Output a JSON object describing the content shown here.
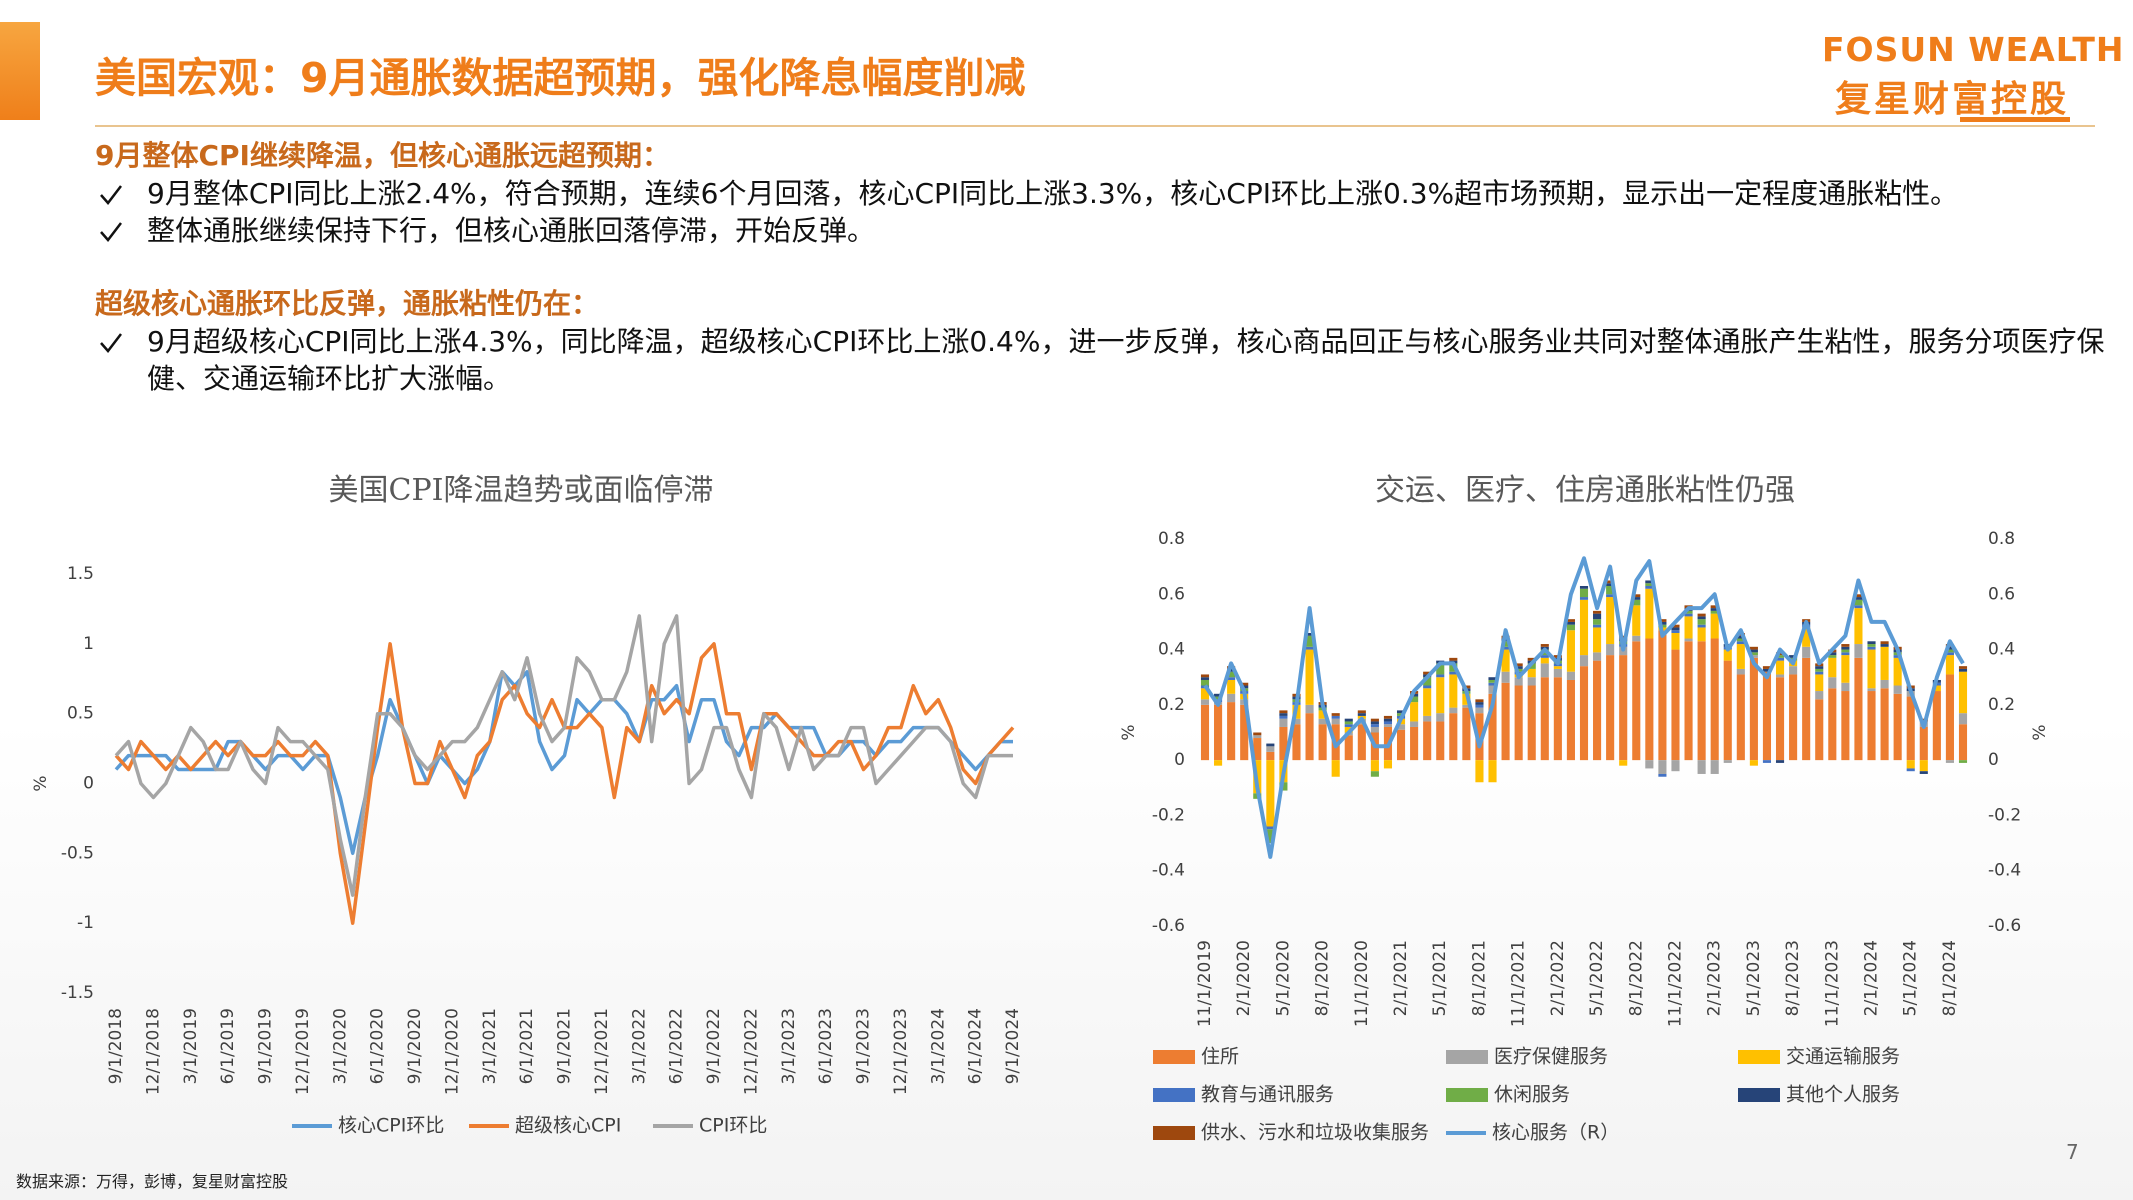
{
  "header": {
    "title": "美国宏观：9月通胀数据超预期，强化降息幅度削减",
    "logo_en": "FOSUN WEALTH",
    "logo_cn": "复星财富控股"
  },
  "sections": [
    {
      "heading": "9月整体CPI继续降温，但核心通胀远超预期：",
      "bullets": [
        "9月整体CPI同比上涨2.4%，符合预期，连续6个月回落，核心CPI同比上涨3.3%，核心CPI环比上涨0.3%超市场预期，显示出一定程度通胀粘性。",
        "整体通胀继续保持下行，但核心通胀回落停滞，开始反弹。"
      ]
    },
    {
      "heading": "超级核心通胀环比反弹，通胀粘性仍在：",
      "bullets": [
        "9月超级核心CPI同比上涨4.3%，同比降温，超级核心CPI环比上涨0.4%，进一步反弹，核心商品回正与核心服务业共同对整体通胀产生粘性，服务分项医疗保健、交通运输环比扩大涨幅。"
      ]
    }
  ],
  "chart_data": [
    {
      "type": "line",
      "title": "美国CPI降温趋势或面临停滞",
      "ylabel": "%",
      "categories": [
        "9/1/2018",
        null,
        null,
        "12/1/2018",
        null,
        null,
        "3/1/2019",
        null,
        null,
        "6/1/2019",
        null,
        null,
        "9/1/2019",
        null,
        null,
        "12/1/2019",
        null,
        null,
        "3/1/2020",
        null,
        null,
        "6/1/2020",
        null,
        null,
        "9/1/2020",
        null,
        null,
        "12/1/2020",
        null,
        null,
        "3/1/2021",
        null,
        null,
        "6/1/2021",
        null,
        null,
        "9/1/2021",
        null,
        null,
        "12/1/2021",
        null,
        null,
        "3/1/2022",
        null,
        null,
        "6/1/2022",
        null,
        null,
        "9/1/2022",
        null,
        null,
        "12/1/2022",
        null,
        null,
        "3/1/2023",
        null,
        null,
        "6/1/2023",
        null,
        null,
        "9/1/2023",
        null,
        null,
        "12/1/2023",
        null,
        null,
        "3/1/2024",
        null,
        null,
        "6/1/2024",
        null,
        null,
        "9/1/2024"
      ],
      "ylim": [
        -1.5,
        1.5
      ],
      "yticks": [
        -1.5,
        -1,
        -0.5,
        0,
        0.5,
        1,
        1.5
      ],
      "series": [
        {
          "name": "核心CPI环比",
          "color": "#5b9bd5",
          "values": [
            0.1,
            0.2,
            0.2,
            0.2,
            0.2,
            0.1,
            0.1,
            0.1,
            0.1,
            0.3,
            0.3,
            0.2,
            0.1,
            0.2,
            0.2,
            0.1,
            0.2,
            0.2,
            -0.1,
            -0.5,
            -0.1,
            0.2,
            0.6,
            0.4,
            0.2,
            0,
            0.2,
            0.1,
            0,
            0.1,
            0.3,
            0.8,
            0.7,
            0.8,
            0.3,
            0.1,
            0.2,
            0.6,
            0.5,
            0.6,
            0.6,
            0.5,
            0.3,
            0.6,
            0.6,
            0.7,
            0.3,
            0.6,
            0.6,
            0.3,
            0.2,
            0.4,
            0.4,
            0.5,
            0.4,
            0.4,
            0.4,
            0.2,
            0.2,
            0.3,
            0.3,
            0.2,
            0.3,
            0.3,
            0.4,
            0.4,
            0.4,
            0.3,
            0.2,
            0.1,
            0.2,
            0.3,
            0.3
          ]
        },
        {
          "name": "超级核心CPI",
          "color": "#ed7d31",
          "values": [
            0.2,
            0.1,
            0.3,
            0.2,
            0.1,
            0.2,
            0.1,
            0.2,
            0.3,
            0.2,
            0.3,
            0.2,
            0.2,
            0.3,
            0.2,
            0.2,
            0.3,
            0.2,
            -0.5,
            -1,
            -0.3,
            0.4,
            1,
            0.4,
            0,
            0,
            0.3,
            0.1,
            -0.1,
            0.2,
            0.3,
            0.6,
            0.7,
            0.5,
            0.4,
            0.6,
            0.4,
            0.4,
            0.5,
            0.4,
            -0.1,
            0.4,
            0.3,
            0.7,
            0.5,
            0.6,
            0.5,
            0.9,
            1,
            0.5,
            0.5,
            0.1,
            0.5,
            0.5,
            0.4,
            0.3,
            0.2,
            0.2,
            0.3,
            0.3,
            0.1,
            0.2,
            0.4,
            0.4,
            0.7,
            0.5,
            0.6,
            0.4,
            0.1,
            0,
            0.2,
            0.3,
            0.4
          ]
        },
        {
          "name": "CPI环比",
          "color": "#a5a5a5",
          "values": [
            0.2,
            0.3,
            0,
            -0.1,
            0,
            0.2,
            0.4,
            0.3,
            0.1,
            0.1,
            0.3,
            0.1,
            0,
            0.4,
            0.3,
            0.3,
            0.2,
            0.1,
            -0.4,
            -0.8,
            -0.1,
            0.5,
            0.5,
            0.4,
            0.2,
            0.1,
            0.2,
            0.3,
            0.3,
            0.4,
            0.6,
            0.8,
            0.6,
            0.9,
            0.5,
            0.3,
            0.4,
            0.9,
            0.8,
            0.6,
            0.6,
            0.8,
            1.2,
            0.3,
            1,
            1.2,
            0,
            0.1,
            0.4,
            0.4,
            0.1,
            -0.1,
            0.5,
            0.4,
            0.1,
            0.4,
            0.1,
            0.2,
            0.2,
            0.4,
            0.4,
            0,
            0.1,
            0.2,
            0.3,
            0.4,
            0.4,
            0.3,
            0,
            -0.1,
            0.2,
            0.2,
            0.2
          ]
        }
      ]
    },
    {
      "type": "bar",
      "stacked": true,
      "title": "交运、医疗、住房通胀粘性仍强",
      "ylabel": "%",
      "y2label": "%",
      "categories": [
        "11/1/2019",
        null,
        null,
        "2/1/2020",
        null,
        null,
        "5/1/2020",
        null,
        null,
        "8/1/2020",
        null,
        null,
        "11/1/2020",
        null,
        null,
        "2/1/2021",
        null,
        null,
        "5/1/2021",
        null,
        null,
        "8/1/2021",
        null,
        null,
        "11/1/2021",
        null,
        null,
        "2/1/2022",
        null,
        null,
        "5/1/2022",
        null,
        null,
        "8/1/2022",
        null,
        null,
        "11/1/2022",
        null,
        null,
        "2/1/2023",
        null,
        null,
        "5/1/2023",
        null,
        null,
        "8/1/2023",
        null,
        null,
        "11/1/2023",
        null,
        null,
        "2/1/2024",
        null,
        null,
        "5/1/2024",
        null,
        null,
        "8/1/2024",
        null
      ],
      "ylim": [
        -0.6,
        0.8
      ],
      "yticks": [
        -0.6,
        -0.4,
        -0.2,
        0,
        0.2,
        0.4,
        0.6,
        0.8
      ],
      "y2lim": [
        -0.6,
        0.8
      ],
      "y2ticks": [
        -0.6,
        -0.4,
        -0.2,
        0,
        0.2,
        0.4,
        0.6,
        0.8
      ],
      "series": [
        {
          "name": "住所",
          "color": "#ed7d31",
          "values": [
            0.2,
            0.2,
            0.21,
            0.2,
            0.08,
            0.03,
            0.12,
            0.13,
            0.17,
            0.13,
            0.13,
            0.09,
            0.13,
            0.1,
            0.12,
            0.11,
            0.12,
            0.14,
            0.14,
            0.17,
            0.19,
            0.17,
            0.24,
            0.28,
            0.27,
            0.27,
            0.3,
            0.3,
            0.29,
            0.34,
            0.36,
            0.38,
            0.38,
            0.43,
            0.44,
            0.47,
            0.4,
            0.43,
            0.43,
            0.44,
            0.36,
            0.31,
            0.37,
            0.32,
            0.3,
            0.31,
            0.37,
            0.22,
            0.26,
            0.25,
            0.37,
            0.25,
            0.26,
            0.24,
            0.23,
            0.12,
            0.25,
            0.31,
            0.13
          ]
        },
        {
          "name": "医疗保健服务",
          "color": "#a5a5a5",
          "values": [
            0.02,
            0.01,
            0.03,
            0.02,
            0.01,
            0.02,
            0.03,
            0.02,
            0.03,
            0.02,
            0.02,
            0.01,
            0.02,
            0.02,
            0.01,
            0.02,
            0.02,
            0.02,
            0.03,
            0.02,
            0.01,
            0.02,
            0.03,
            0.04,
            0.03,
            0.03,
            0.05,
            0.03,
            0.03,
            0.04,
            0.03,
            0.04,
            0.03,
            0.02,
            -0.03,
            -0.05,
            -0.04,
            0.01,
            -0.05,
            -0.05,
            -0.01,
            0.02,
            0.01,
            0,
            0.01,
            0.03,
            0.04,
            0.03,
            0.04,
            0.03,
            0.05,
            0.01,
            0.03,
            0.03,
            0.02,
            0.02,
            0,
            -0.01,
            0.04
          ]
        },
        {
          "name": "交通运输服务",
          "color": "#ffc000",
          "values": [
            0.04,
            -0.02,
            0.05,
            0.02,
            -0.12,
            -0.24,
            -0.08,
            0.05,
            0.2,
            0.03,
            -0.06,
            0.02,
            0.01,
            -0.04,
            -0.03,
            0.02,
            0.07,
            0.1,
            0.13,
            0.12,
            0.04,
            -0.08,
            -0.08,
            0.08,
            0.01,
            0.03,
            0.02,
            0.01,
            0.15,
            0.2,
            0.09,
            0.17,
            -0.02,
            0.11,
            0.18,
            0.01,
            0.06,
            0.08,
            0.05,
            0.09,
            0.04,
            0.09,
            -0.02,
            0,
            0.05,
            0.02,
            0.07,
            0.06,
            0.07,
            0.1,
            0.13,
            0.14,
            0.12,
            0.1,
            -0.03,
            -0.04,
            0.02,
            0.07,
            0.15
          ]
        },
        {
          "name": "教育与通讯服务",
          "color": "#4472c4",
          "values": [
            0.01,
            0.01,
            0.01,
            0.01,
            0,
            -0.01,
            0.01,
            0.01,
            0.01,
            0,
            0.01,
            0.01,
            0,
            0.01,
            0.01,
            0.01,
            0,
            0.01,
            0.01,
            0.01,
            0,
            0.01,
            0.01,
            0.01,
            0.01,
            0,
            0.01,
            0.01,
            0,
            0.01,
            0.01,
            0.01,
            0.01,
            0,
            0.01,
            -0.01,
            0.01,
            0.01,
            0.01,
            0,
            0.01,
            0.01,
            0,
            -0.01,
            0.01,
            0,
            0.01,
            0.01,
            0,
            0.01,
            0.01,
            0.01,
            0,
            0.01,
            -0.01,
            0,
            0.01,
            0.01,
            0
          ]
        },
        {
          "name": "休闲服务",
          "color": "#70ad47",
          "values": [
            0.02,
            0.01,
            0.02,
            0.01,
            -0.02,
            -0.05,
            -0.03,
            0.01,
            0.04,
            0.01,
            0,
            0.01,
            0,
            -0.02,
            0,
            0.01,
            0.02,
            0.03,
            0.04,
            0.03,
            0.01,
            0,
            0.01,
            0.02,
            0.01,
            0.02,
            0.02,
            0.01,
            0.02,
            0.03,
            0.02,
            0.03,
            0.01,
            0.02,
            0.01,
            0.01,
            0,
            0.01,
            0.02,
            0.01,
            0,
            0.01,
            0.01,
            0,
            0.01,
            0.01,
            0,
            0.01,
            0.01,
            0.01,
            0.02,
            0.01,
            0,
            0.01,
            0,
            0,
            0,
            0.01,
            -0.01
          ]
        },
        {
          "name": "其他个人服务",
          "color": "#264478",
          "values": [
            0.01,
            0.01,
            0.01,
            0.01,
            0,
            0.01,
            0.01,
            0.01,
            0.01,
            0.01,
            0,
            0.01,
            0.01,
            0.01,
            0.01,
            0.01,
            0.01,
            0.01,
            0.01,
            0.01,
            0.01,
            0.01,
            0.01,
            0.01,
            0.01,
            0.01,
            0.01,
            0.01,
            0.01,
            0.01,
            0.02,
            0.01,
            0.01,
            0.01,
            0.01,
            0.01,
            0.01,
            0.01,
            0.01,
            0.01,
            0.01,
            0.01,
            0.01,
            0.01,
            -0.01,
            0.01,
            0.01,
            0.01,
            0.01,
            0.01,
            0.01,
            0.01,
            0.01,
            0.01,
            0.01,
            -0.01,
            0.01,
            0.01,
            0.01
          ]
        },
        {
          "name": "供水、污水和垃圾收集服务",
          "color": "#9e480e",
          "values": [
            0.01,
            0,
            0.01,
            0.01,
            0.01,
            0,
            0.01,
            0.01,
            0,
            0.01,
            0.01,
            0,
            0.01,
            0.01,
            0.01,
            0,
            0.01,
            0.01,
            0,
            0.01,
            0.01,
            0.01,
            0,
            0.01,
            0.01,
            0.01,
            0.01,
            0.01,
            0.01,
            0,
            0.01,
            0.01,
            0.01,
            0.01,
            0,
            0.01,
            0.01,
            0.01,
            0.01,
            0.01,
            0,
            0.01,
            0.01,
            0.01,
            0.01,
            0,
            0.01,
            0.01,
            0.01,
            0.01,
            0.01,
            0,
            0.01,
            0.01,
            0.01,
            0.01,
            0,
            0.01,
            0.01
          ]
        },
        {
          "name": "核心服务（R）",
          "color": "#5b9bd5",
          "type": "line",
          "axis": "y2",
          "values": [
            0.27,
            0.2,
            0.35,
            0.25,
            -0.1,
            -0.35,
            -0.05,
            0.2,
            0.55,
            0.2,
            0.05,
            0.1,
            0.15,
            0.05,
            0.05,
            0.15,
            0.25,
            0.3,
            0.35,
            0.35,
            0.25,
            0.05,
            0.2,
            0.47,
            0.3,
            0.35,
            0.4,
            0.35,
            0.6,
            0.73,
            0.55,
            0.7,
            0.4,
            0.65,
            0.72,
            0.45,
            0.5,
            0.55,
            0.55,
            0.6,
            0.4,
            0.47,
            0.35,
            0.3,
            0.4,
            0.35,
            0.5,
            0.35,
            0.4,
            0.45,
            0.65,
            0.5,
            0.5,
            0.4,
            0.25,
            0.12,
            0.3,
            0.43,
            0.35
          ]
        }
      ]
    }
  ],
  "footer": {
    "source": "数据来源：万得，彭博，复星财富控股",
    "page": "7"
  }
}
